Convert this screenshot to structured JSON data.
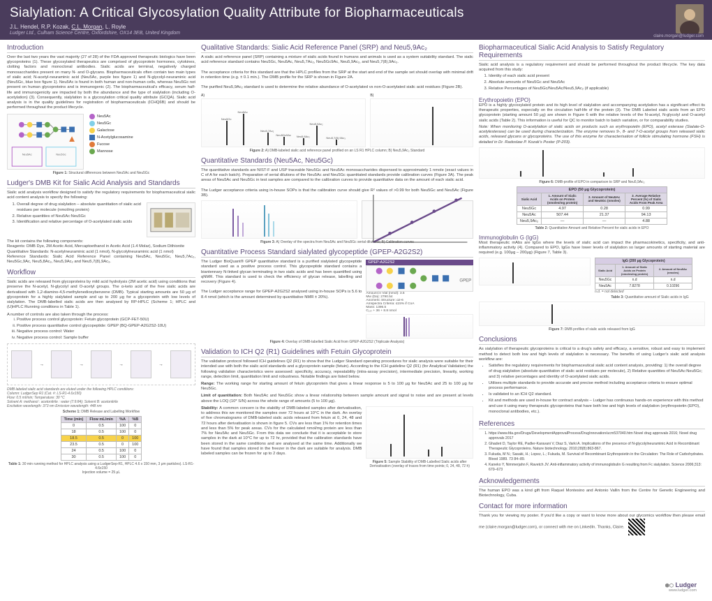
{
  "header": {
    "title": "Sialylation: A Critical Glycosylation Quality Attribute for Biopharmaceuticals",
    "authors_html": "J.L. Hendel, R.P. Kozak, C.L. Morgan, L. Royle",
    "affiliation": "Ludger Ltd., Culham Science Centre, Oxfordshire, OX14 3EB, United Kingdom",
    "email": "claire.morgan@ludger.com"
  },
  "intro": {
    "title": "Introduction",
    "text": "Over the last two years the vast majority (27 of 28) of the FDA approved therapeutic biologics have been glycoproteins (1). These glycosylated therapeutics are comprised of glycoprotein hormones, cytokines, clotting factors and monoclonal antibodies. Sialic acids are terminal, negatively charged monosaccharides present on many N- and O-glycans. Biopharmaceuticals often contain two main types of sialic acid; N-acetyl-neuraminic acid (Neu5Ac, purple box figure 1) and N-glycolyl-neuraminic acid (Neu5Gc, blue box figure 1). Neu5Ac is found in both human and non-human cells, whereas Neu5Gc not present on human glycoproteins and is immunogenic (2). The biopharmaceutical's efficacy, serum half-life and immunogenicity are impacted by both the abundance and the type of sialylation (including O-acetylation) (3). Consequently, sialylation is a glycosylation critical quality attribute (GCQA). Sialic acid analysis is in the quality guidelines for registration of biopharmaceuticals (ICHQ6B) and should be performed throughout the product lifecycle.",
    "fig1_caption": "Figure 1: Structural differences between Neu5Ac and Neu5Gc",
    "sugar_legend": [
      {
        "color": "#b464c8",
        "label": "Neu5Ac"
      },
      {
        "color": "#80d0e8",
        "label": "Neu5Gc"
      },
      {
        "color": "#f7d24a",
        "label": "Galactose"
      },
      {
        "color": "#3a6fb0",
        "label": "N-Acetylglucosamine"
      },
      {
        "color": "#e07a3a",
        "label": "Fucose"
      },
      {
        "color": "#6aa84f",
        "label": "Mannose"
      }
    ]
  },
  "dmb_kit": {
    "title": "Ludger's DMB Kit for Sialic Acid Analysis and Standards",
    "lead": "Sialic acid analysis workflow designed to satisfy the regulatory requirements for biopharmaceutical sialic acid content analysis to specify the following:",
    "points": [
      "Overall degree of drug sialylation – absolute quantitation of sialic acid residues per molecule (nmol/mg protein)",
      "Relative quantities of Neu5Ac:Neu5Gc",
      "Identification and relative percentage of O-acetylated sialic acids"
    ],
    "kit_text": "The kit contains the following components:\nReagents: DMB Dye, 2M Acetic Acid, Mercaptoethanol in Acetic Acid (1.4 Molar), Sodium Dithionite\nQuantitative Standards: N-acetylneuraminic acid (1 nmol), N-glycolylneuraminic acid (1 nmol)\nReference Standards: Sialic Acid Reference Panel containing Neu5Ac, Neu5Gc, Neu5,7Ac₂, Neu5Gc,9Ac, Neu5,8Ac₂, Neu5,9Ac₂ and Neu5,7(8),9Ac₃."
  },
  "workflow": {
    "title": "Workflow",
    "text": "Sialic acids are released from glycoproteins by mild acid hydrolysis (2M acetic acid) using conditions that preserve the N-acetyl, N-glycolyl and O-acetyl groups. The α-keto acid of the free sialic acids are derivatised with 1,2-diamino-4,5-methylenedioxybenzene (DMB). Typical starting amounts are 50 μg of glycoprotein for a highly sialylated sample and up to 200 μg for a glycoprotein with low levels of sialylation. The DMB-labelled sialic acids are then analysed by RP-HPLC (Scheme 1; HPLC and (U)HPLC Running conditions in Table 1).",
    "controls_lead": "A number of controls are also taken through the process:",
    "controls": [
      "Positive process control glycoprotein: Fetuin glycoprotein (GCP-FET-50U)",
      "Positive process quantitative control glycopeptide: GPEP (BQ-GPEP-A2G2S2-10U)",
      "Negative process control: Water",
      "Negative process control: Sample buffer"
    ],
    "scheme_caption": "Scheme 1: DMB Release and Labelling Workflow",
    "hplc_note": "DMB labeled sialic acid standards are eluted under the following HPLC conditions:\nColumn: LudgerSep R1 (Cat. #: LS-R1-4.6x150)\nFlow: 0.5 ml/min; Temperature: 30 °C\nSolvent A: methanol : acetonitrile : water (7:9:84); Solvent B: acetonitrile\nExcitation wavelength: 373 nm Emission wavelength: 448 nm",
    "table1_caption": "Table 1: 30 min running method for HPLC analysis using a LudgerSep-R1, HPLC 4.6 x 150 mm, 3 μm particles). LS-R1-4.6x150\nInjection volume = 25 μL",
    "table1": {
      "columns": [
        "Time (min)",
        "Flow mL/min",
        "%A",
        "%B"
      ],
      "rows": [
        [
          "0",
          "0.5",
          "100",
          "0"
        ],
        [
          "18",
          "0.5",
          "100",
          "0"
        ],
        [
          "18.5",
          "0.5",
          "0",
          "100"
        ],
        [
          "23.5",
          "0.5",
          "0",
          "100"
        ],
        [
          "24",
          "0.5",
          "100",
          "0"
        ],
        [
          "30",
          "0.5",
          "100",
          "0"
        ]
      ],
      "highlight_row_idx": 2,
      "highlight_color": "#f7d24a"
    }
  },
  "qual_std": {
    "title": "Qualitative Standards: Sialic Acid Reference Panel (SRP) and Neu5,9Ac₂",
    "text": "A sialic acid reference panel (SRP) containing a mixture of sialic acids found in humans and animals is used as a system suitability standard. The sialic acid reference standard contains Neu5Gc, Neu5Ac, Neu5,7Ac₂, Neu5Gc9Ac, Neu5,9Ac₂, and Neu5,7(8),9Ac₃.\n\nThe acceptance criteria for this standard are that the HPLC profiles from the SRP at the start and end of the sample set should overlap with minimal drift in retention time (e.g. ± 0.1 min.). The DMB profile for the SRP is shown in Figure 2A.\n\nThe purified Neu5,9Ac₂ standard is used to determine the relative abundance of O-acetylated vs non-O-acetylated sialic acid residues (Figure 2B).",
    "fig2_caption": "Figure 2: A) DMB-labeled sialic acid reference panel profiled on an LS R1 HPLC column; B) Neu5,9Ac₂ Standard",
    "srp_peaks": [
      {
        "x": 15,
        "h": 35,
        "label": "Neu5Gc",
        "rt": "7.1"
      },
      {
        "x": 25,
        "h": 45,
        "label": "Neu5Ac",
        "rt": "8.4"
      },
      {
        "x": 40,
        "h": 18,
        "label": "Neu5,7Ac₂",
        "rt": "11.6"
      },
      {
        "x": 50,
        "h": 12,
        "label": "Neu5Gc9Ac",
        "rt": "13.2"
      },
      {
        "x": 62,
        "h": 10,
        "label": "Neu5,8Ac₂",
        "rt": "15.1"
      },
      {
        "x": 70,
        "h": 28,
        "label": "Neu5,9Ac₂",
        "rt": "16.7"
      },
      {
        "x": 82,
        "h": 8,
        "label": "Neu5,7(8),9Ac₃",
        "rt": "19.0"
      }
    ]
  },
  "quant_std": {
    "title": "Quantitative Standards (Neu5Ac, Neu5Gc)",
    "text": "The quantitative standards are NIST-F and USP traceable Neu5Gc and Neu5Ac monosaccharides dispensed to approximately 1 nmole (exact values in C of A for each batch). Preparation of serial dilutions of the Neu5Ac and Neu5Gc quantitated standards provide calibration curves (Figure 3A). The peak areas of Neu5Ac and Neu5Gc in test samples are compared to the calibration curves to provide quantitative data on the amount of each sialic acid.\n\nThe Ludger acceptance criteria using in-house SOPs is that the calibration curve should give R² values of >0.99 for both Neu5Gc and Neu5Ac (Figure 3B).",
    "fig3_caption": "Figure 3: A) Overlay of the spectra from Neu5Ac and Neu5Gc serial dilutions; B) Calibration curves"
  },
  "gpep": {
    "title": "Quantitative Process Standard sialylated glycopeptide (GPEP-A2G2S2)",
    "text": "The Ludger BioQuant® GPEP quantitative standard is a purified sialylated glycopeptide standard used as a positive process control. This glycopeptide standard contains a biantennary N-linked glycan terminating in two sialic acids and has been quantified using qNMR. This standard is used to check the efficiency of glycan release, labelling and recovery (Figure 4).\n\nThe Ludger acceptance range for GPEP-A2G2S2 analysed using in-house SOPs is 5.6 to 8.4 nmol (which is the amount determined by quantitative NMR ± 20%).",
    "fig4_caption": "Figure 4: Overlay of DMB-labelled Sialic Acid from GPEP-A2G2S2 (Triplicate Analysis)",
    "glycan_label": "GPEP-A2G2S2",
    "glycan_lines": [
      "Amount in Vial (nmol): 3.5",
      "Mw (Da): 2790.54",
      "Anomeric Structure: α2-6",
      "Amspectra Criteria: ≤15% if CoA",
      "Mass: 1396.5",
      "C₁₃₇ + 36 + 8.8 nmol"
    ]
  },
  "validation": {
    "title": "Validation to ICH Q2 (R1) Guidelines with Fetuin Glycoprotein",
    "text": "The validation protocol followed ICH guidelines Q2 (R1) to show that the Ludger Standard operating procedures for sialic analysis were suitable for their intended use with both the sialic acid standards and a glycoprotein sample (fetuin). According to the ICH guideline Q2 (R1) (for Analytical Validation) the following validation characteristics were assessed: specificity, accuracy, repeatability (intra-assay precision), intermediate precision, linearity, working range, detection limit, quantitation limit and robustness. Notable findings are listed below.",
    "range": "Range: The working range for starting amount of fetuin glycoprotein that gives a linear response is 5 to 100 μg for Neu5Ac and 25 to 100 μg for Neu5Gc.",
    "loq": "Limit of quantitation: Both Neu5Ac and Neu5Gc show a linear relationship between sample amount and signal to noise and are present at levels above the LOQ (10* S/N) across the whole range of amounts (5 to 100 μg).",
    "stability": "Stability: A common concern is the stability of DMB-labeled samples after derivatisation, to address this we monitored the samples over 72 hours at 10°C in the dark. An overlay of five chromatograms of DMB-labeled sialic acids released from fetuin at 0, 24, 48 and 72 hours after derivatisation is shown in figure 5. CVs are less than 1% for retention times and less than 5% for peak areas. CVs for the calculated nmol/mg protein are less than 7% for Neu5Ac and Neu5Gc. From this data we conclude that it is acceptable to store samples in the dark at 10°C for up to 72 hr, provided that the calibration standards have been stored in the same conditions and are analysed at the same time. Additionally we have found that samples stored in the freezer in the dark are suitable for analysis. DMB labeled samples can be frozen for up to 2 days.",
    "fig5_caption": "Figure 5: Sample Stability of DMB-Labelled Sialic acids after Derivatisation (overlay of traces from time points; 0, 24, 48, 72 h)"
  },
  "regulatory": {
    "title": "Biopharmaceutical Sialic Acid Analysis to Satisfy Regulatory Requirements",
    "lead": "Sialic acid analysis is a regulatory requirement and should be performed throughout the product lifecycle. The key data acquired from this study:",
    "points": [
      "Identity of each sialic acid present",
      "Absolute amounts of Neu5Gc and Neu5Ac",
      "Relative Percentages of Neu5Gc/Neu5Ac/Neu5,9Ac₂ (if applicable)"
    ]
  },
  "epo": {
    "title": "Erythropoietin (EPO)",
    "text": "EPO is a highly glycosylated protein and its high level of sialylation and accompanying acetylation has a significant effect its therapeutic properties, especially on the circulation half-life of the protein (3). The DMB Labeled sialic acids from an EPO glycoprotein (starting amount 50 μg) are shown in Figure 6 with the relative levels of the N-acetyl, N-glycolyl and O-acetyl sialic acids (Table 2). This information is useful for QC to monitor batch to batch variation, or for comparability studies.",
    "note": "Note: When monitoring O-acetylation of sialic acids on products such as erythropoietin (EPO), acetyl esterase (Sialate-O-acetylesterase) can be used during characterization. The enzyme removes 9-, 8- and 7-O-acetyl groups from released sialic acids, released glycans or glycoproteins. The use of this enzyme for characterisation of follicle stimulating hormone (FSH) is detailed in Dr. Radoslaw P. Kozak's Poster (P-203).",
    "fig6_caption": "Figure 6: DMB-profile of EPO in comparison to SRP and Neu5,9Ac₂",
    "table2_caption": "Table 2: Quantitative Amount and Relative Percent for sialic acids in EPO",
    "table2": {
      "columns": [
        "Sialic Acid",
        "1. Amount of Sialic Acids on Protein (nmoles/mg protein)",
        "2. Amount of Neu5Ac and Neu5Gc (nmoles)",
        "3. Average Relative Percent (%) of Sialic Acids From Peak Area"
      ],
      "rows": [
        [
          "Neu5Gc",
          "4.97",
          "0.28",
          "0.99"
        ],
        [
          "Neu5Ac",
          "507.44",
          "21.37",
          "94.13"
        ],
        [
          "Neu5,9Ac₂",
          "—",
          "—",
          "4.88"
        ]
      ],
      "header_bg": "#d7cde4"
    }
  },
  "igg": {
    "title": "Immunoglobulin G (IgG)",
    "text": "Most therapeutic mAbs are IgGs where the levels of sialic acid can impact the pharmacokinetics, specificity, and anti-inflammatory activity (4). Compared to EPO, IgGs have lower levels of sialylation so larger amounts of starting material are required (e.g. 100μg – 200μg) (Figure 7, Table 3).",
    "fig7_caption": "Figure 7: DMB profiles of sialic acids released from IgG",
    "table3_caption": "Table 3: Quantitative amount of Sialic acids in IgG",
    "table3": {
      "title": "IgG (200 μg Glycoprotein)",
      "columns": [
        "Sialic Acid",
        "1. Amount of Sialic Acids on Protein (nmoles/mg protein)",
        "2. Amount of Neu5Ac (nmoles)"
      ],
      "rows": [
        [
          "Neu5Gc",
          "n.d",
          "n.d"
        ],
        [
          "Neu5Ac",
          "7.8278",
          "0.10296"
        ]
      ],
      "footnote": "n.d. = not detected"
    }
  },
  "conclusions": {
    "title": "Conclusions",
    "lead": "As sialylation of therapeutic glycoproteins is critical to a drug's safety and efficacy, a sensitive, robust and easy to implement method to detect both low and high levels of sialylation is necessary. The benefits of using Ludger's sialic acid analysis workflow are:",
    "bullets": [
      "Satisfies the regulatory requirements for biopharmaceutical sialic acid content analysis, providing: 1) the overall degree of drug sialylation (absolute quantitation of sialic acid residues per molecule), 2) Relative quantities of Neu5Ac:Neu5Gc; and 3) relative percentages and identity of O-acetylated sialic acids.",
      "Utilises multiple standards to provide accurate and precise method including acceptance criteria to ensure optimal process performance.",
      "Is validated to an ICH Q2 standard.",
      "Kit and methods are used in-house for contract analysis – Ludger has continuous hands-on experience with this method and use it using many therapeutic glycoproteins that have both low and high levels of sialylation (erythropoietin (EPO), monoclonal antibodies, etc.)."
    ]
  },
  "references": {
    "title": "References",
    "items": [
      "https://www.fda.gov/Drugs/DevelopmentApprovalProcess/DrugInnovation/ucm537040.htm Novel drug approvals 2016; Novel drug approvals 2017",
      "Ghaderi D, Taylor RE, Padler-Karavani V, Diaz S, Varki A. Implications of the presence of N-glycolylneuraminic Acid in Recombinant Therapeutic Glycoproteins. Nature biotechnology. 2010;28(8):863-867.",
      "Fukuda, M N.; Sasaki, H.; Lopez, L.; Fukuda, M. Survival of Recombinant Erythropoietin in the Circulation: The Role of Carbohydrates. Blood 1989. 73 84–89.",
      "Kaneko Y, Nimmerjahn F, Ravetch JV. Anti-inflammatory activity of immunoglobulin G resulting from Fc sialylation. Science 2006;313: 670–673"
    ]
  },
  "ack": {
    "title": "Acknowledgements",
    "text": "The human EPO was a kind gift from Raquel Montesino and Antonio Vallin from the Centre for Genetic Engineering and Biotechnology, Cuba."
  },
  "contact": {
    "title": "Contact for more information",
    "text": "Thank you for viewing my poster. If you'd like a copy or want to know more about our glycomics workflow then please email me (claire.morgan@ludger.com), or connect with me on LinkedIn. Thanks, Claire.",
    "logo": "Ludger",
    "url": "www.ludger.com"
  }
}
